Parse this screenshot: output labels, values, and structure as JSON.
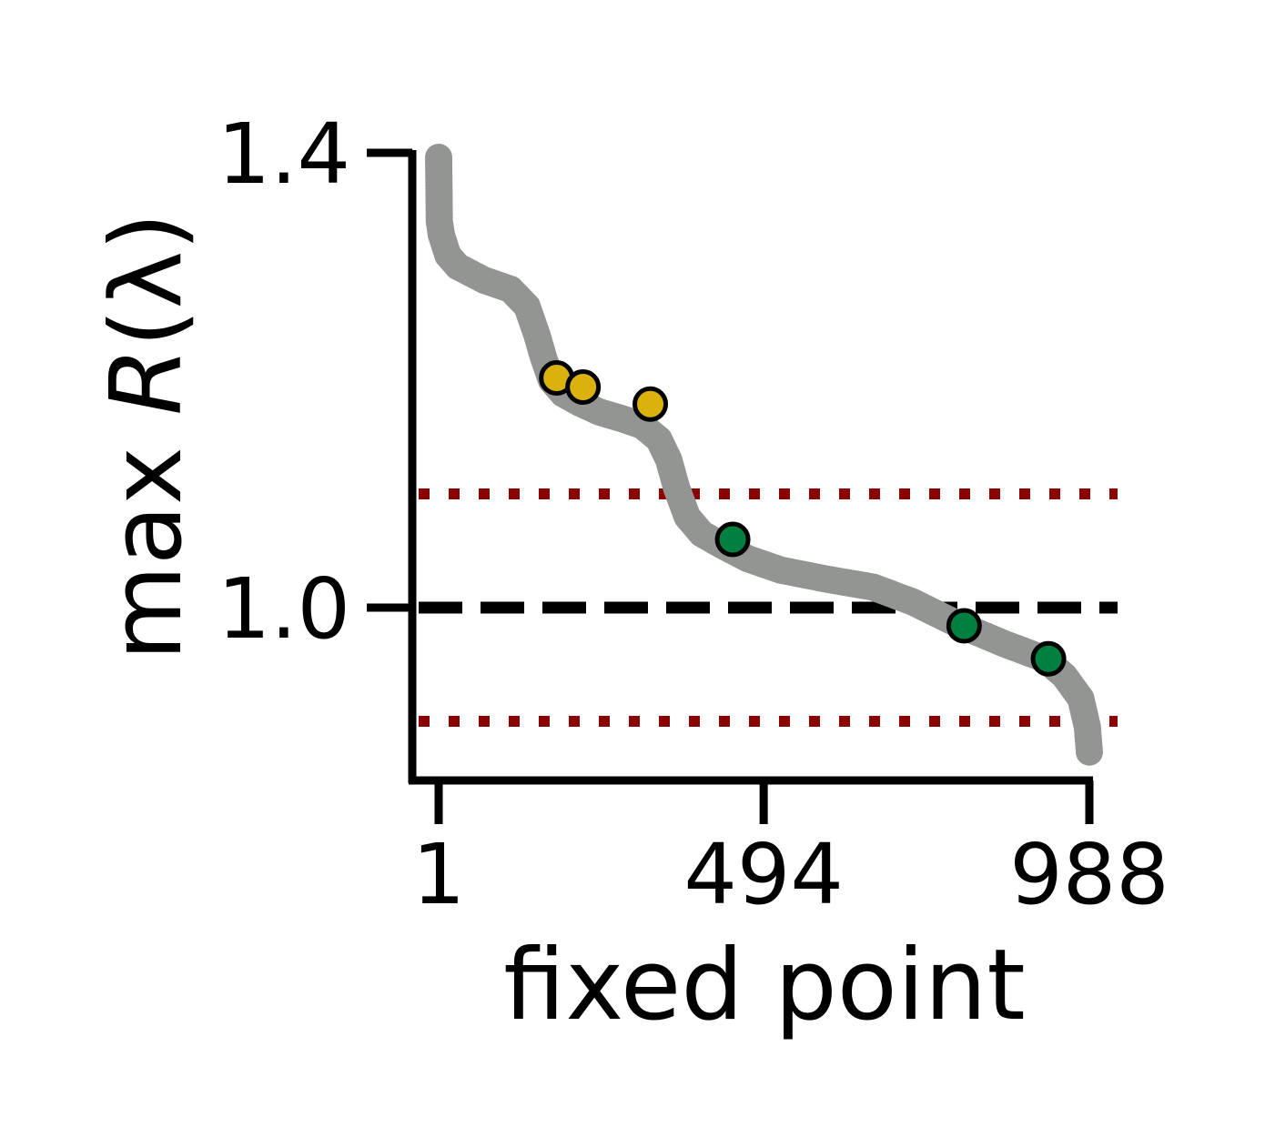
{
  "chart_data": {
    "type": "scatter",
    "xlabel": "fixed point",
    "ylabel_prefix": "max ",
    "ylabel_symbol": "R",
    "ylabel_suffix": "(λ)",
    "xlim": [
      1,
      988
    ],
    "ylim": [
      0.83,
      1.4
    ],
    "x_ticks": [
      1,
      494,
      988
    ],
    "x_tick_labels": [
      "1",
      "494",
      "988"
    ],
    "y_ticks": [
      1.0,
      1.4
    ],
    "y_tick_labels": [
      "1.0",
      "1.4"
    ],
    "reference_lines": [
      {
        "y": 1.0,
        "style": "dashed",
        "color": "#000000"
      },
      {
        "y": 1.1,
        "style": "dotted",
        "color": "#8b0000"
      },
      {
        "y": 0.9,
        "style": "dotted",
        "color": "#8b0000"
      }
    ],
    "curve_color": "#939593",
    "curve": [
      [
        1,
        1.396
      ],
      [
        2,
        1.34
      ],
      [
        5,
        1.328
      ],
      [
        15,
        1.31
      ],
      [
        30,
        1.3
      ],
      [
        70,
        1.288
      ],
      [
        110,
        1.28
      ],
      [
        135,
        1.265
      ],
      [
        150,
        1.24
      ],
      [
        160,
        1.22
      ],
      [
        172,
        1.2
      ],
      [
        190,
        1.188
      ],
      [
        215,
        1.18
      ],
      [
        245,
        1.172
      ],
      [
        280,
        1.166
      ],
      [
        310,
        1.16
      ],
      [
        335,
        1.148
      ],
      [
        350,
        1.13
      ],
      [
        362,
        1.105
      ],
      [
        378,
        1.08
      ],
      [
        400,
        1.065
      ],
      [
        430,
        1.055
      ],
      [
        470,
        1.043
      ],
      [
        520,
        1.033
      ],
      [
        590,
        1.025
      ],
      [
        660,
        1.018
      ],
      [
        720,
        1.005
      ],
      [
        790,
        0.985
      ],
      [
        860,
        0.968
      ],
      [
        920,
        0.955
      ],
      [
        950,
        0.94
      ],
      [
        975,
        0.92
      ],
      [
        985,
        0.895
      ],
      [
        988,
        0.873
      ]
    ],
    "highlight_groups": [
      {
        "color": "#dbb10e",
        "x": [
          180,
          220,
          322
        ],
        "y": [
          1.202,
          1.194,
          1.179
        ]
      },
      {
        "color": "#008040",
        "x": [
          447,
          798,
          926
        ],
        "y": [
          1.06,
          0.984,
          0.955
        ]
      }
    ]
  }
}
